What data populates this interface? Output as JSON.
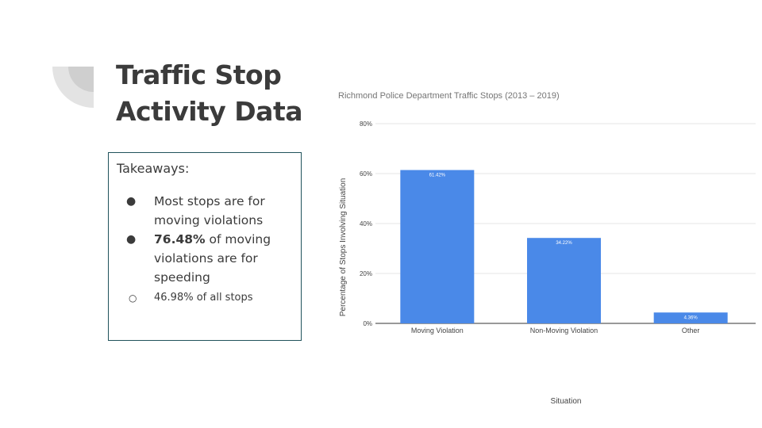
{
  "slide": {
    "title_line1": "Traffic Stop",
    "title_line2": "Activity Data",
    "takeaways": {
      "heading": "Takeaways:",
      "bullet1": "Most stops are for moving violations",
      "bullet2_bold": "76.48%",
      "bullet2_rest": " of moving violations are for speeding",
      "sub_bullet": "46.98% of all stops"
    }
  },
  "colors": {
    "bar": "#4a89e8",
    "title": "#3b3b3b",
    "box_border": "#20525b",
    "deco": "#e3e3e3"
  },
  "chart_data": {
    "type": "bar",
    "title": "Richmond Police Department Traffic Stops (2013 – 2019)",
    "xlabel": "Situation",
    "ylabel": "Percentage of Stops Involving Situation",
    "categories": [
      "Moving Violation",
      "Non-Moving Violation",
      "Other"
    ],
    "values": [
      61.42,
      34.22,
      4.36
    ],
    "data_labels": [
      "61.42%",
      "34.22%",
      "4.36%"
    ],
    "ylim": [
      0,
      80
    ],
    "yticks": [
      0,
      20,
      40,
      60,
      80
    ],
    "ytick_labels": [
      "0%",
      "20%",
      "40%",
      "60%",
      "80%"
    ],
    "grid": true,
    "legend": "none"
  }
}
